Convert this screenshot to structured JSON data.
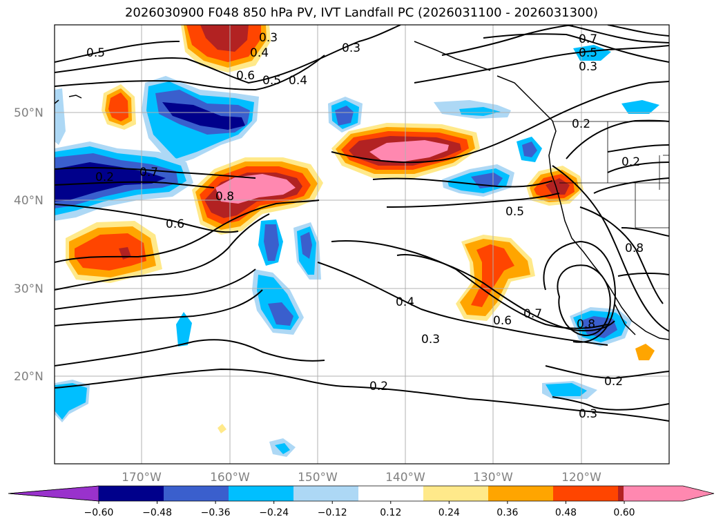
{
  "title": "2026030900 F048 850 hPa PV, IVT Landfall PC (2026031100 - 2026031300)",
  "lat_ticks": [
    "50°N",
    "40°N",
    "30°N",
    "20°N"
  ],
  "lon_ticks": [
    "170°W",
    "160°W",
    "150°W",
    "140°W",
    "130°W",
    "120°W"
  ],
  "contour_labels": [
    "0.5",
    "0.3",
    "0.4",
    "0.6",
    "0.5",
    "0.4",
    "0.3",
    "0.7",
    "0.8",
    "0.6",
    "0.5",
    "0.4",
    "0.3",
    "0.2",
    "0.6",
    "0.7",
    "0.8",
    "0.2",
    "0.3",
    "0.2",
    "0.8",
    "0.7",
    "0.5",
    "0.3",
    "0.2",
    "0.2"
  ],
  "colorbar": {
    "labels": [
      "−0.60",
      "−0.48",
      "−0.36",
      "−0.24",
      "−0.12",
      "0.12",
      "0.24",
      "0.36",
      "0.48",
      "0.60"
    ],
    "colors": [
      "#9932cc",
      "#00008b",
      "#3a5fcd",
      "#00bfff",
      "#add8f5",
      "#ffffff",
      "#ffe98a",
      "#ffa500",
      "#ff4500",
      "#b22222",
      "#ff88b0"
    ]
  },
  "colors": {
    "grid": "#b0b0b0",
    "contour": "#000000",
    "tick_text": "#808080"
  }
}
